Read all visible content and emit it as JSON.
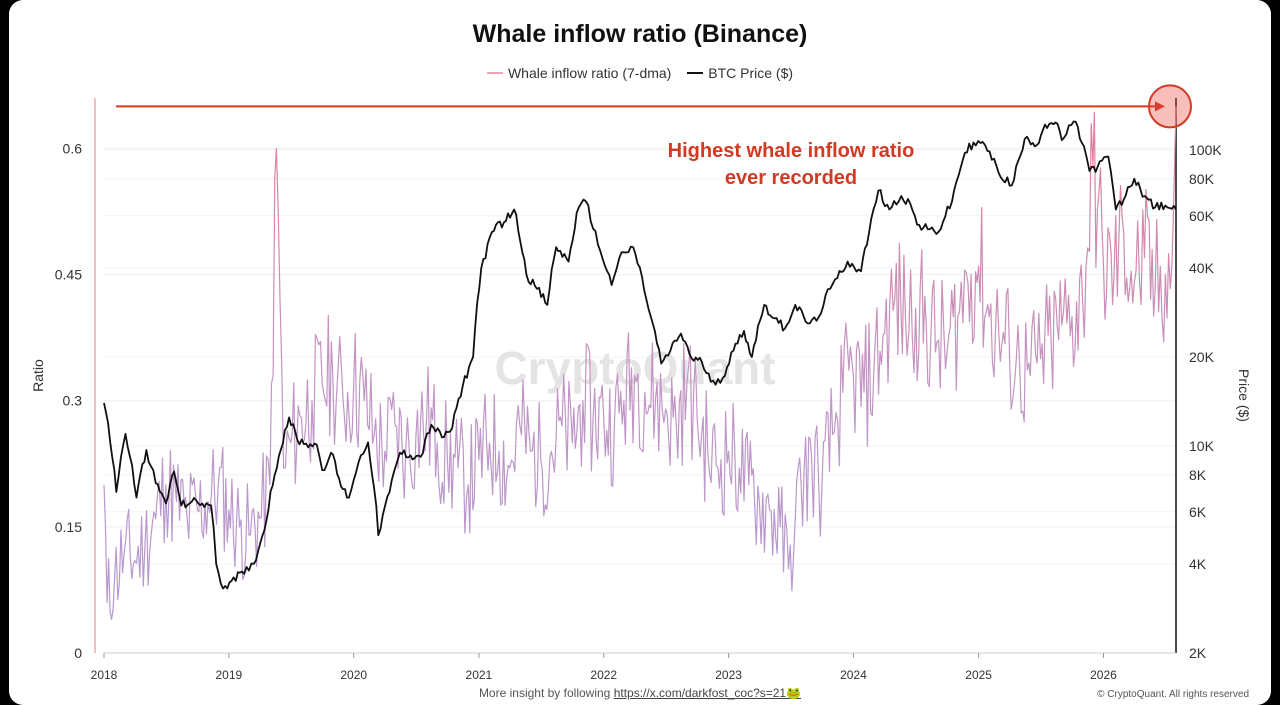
{
  "chart_data": {
    "type": "line",
    "title": "Whale inflow ratio (Binance)",
    "watermark": "CryptoQuant",
    "legend_position": "top-center",
    "grid": true,
    "x_axis": {
      "type": "date",
      "range": [
        "2018-01-01",
        "2026-08-01"
      ],
      "tick_labels": [
        "2018",
        "2019",
        "2020",
        "2021",
        "2022",
        "2023",
        "2024",
        "2025",
        "2026"
      ]
    },
    "y_left": {
      "label": "Ratio",
      "range": [
        0,
        0.66
      ],
      "tick_values": [
        0,
        0.15,
        0.3,
        0.45,
        0.6
      ],
      "tick_labels": [
        "0",
        "0.15",
        "0.3",
        "0.45",
        "0.6"
      ]
    },
    "y_right": {
      "label": "Price ($)",
      "scale": "log",
      "range": [
        2000,
        150000
      ],
      "tick_values": [
        2000,
        4000,
        6000,
        8000,
        10000,
        20000,
        40000,
        60000,
        80000,
        100000
      ],
      "tick_labels": [
        "2K",
        "4K",
        "6K",
        "8K",
        "10K",
        "20K",
        "40K",
        "60K",
        "80K",
        "100K"
      ]
    },
    "series": [
      {
        "name": "Whale inflow ratio (7-dma)",
        "axis": "left",
        "color_low": "#b49ad2",
        "color_high": "#d9869b",
        "points": [
          [
            "2018-01-01",
            0.2
          ],
          [
            "2018-01-10",
            0.06
          ],
          [
            "2018-02-01",
            0.09
          ],
          [
            "2018-03-01",
            0.12
          ],
          [
            "2018-04-01",
            0.11
          ],
          [
            "2018-05-01",
            0.13
          ],
          [
            "2018-06-01",
            0.16
          ],
          [
            "2018-07-01",
            0.2
          ],
          [
            "2018-08-01",
            0.18
          ],
          [
            "2018-09-01",
            0.16
          ],
          [
            "2018-10-01",
            0.17
          ],
          [
            "2018-11-01",
            0.18
          ],
          [
            "2018-12-01",
            0.2
          ],
          [
            "2019-01-01",
            0.17
          ],
          [
            "2019-02-01",
            0.15
          ],
          [
            "2019-03-01",
            0.14
          ],
          [
            "2019-04-01",
            0.16
          ],
          [
            "2019-05-01",
            0.2
          ],
          [
            "2019-05-20",
            0.6
          ],
          [
            "2019-06-10",
            0.22
          ],
          [
            "2019-07-01",
            0.25
          ],
          [
            "2019-08-01",
            0.28
          ],
          [
            "2019-09-01",
            0.3
          ],
          [
            "2019-10-01",
            0.32
          ],
          [
            "2019-11-01",
            0.33
          ],
          [
            "2019-12-01",
            0.3
          ],
          [
            "2020-01-01",
            0.32
          ],
          [
            "2020-02-01",
            0.3
          ],
          [
            "2020-03-01",
            0.26
          ],
          [
            "2020-04-01",
            0.24
          ],
          [
            "2020-05-01",
            0.27
          ],
          [
            "2020-06-01",
            0.24
          ],
          [
            "2020-07-01",
            0.26
          ],
          [
            "2020-08-01",
            0.28
          ],
          [
            "2020-09-01",
            0.25
          ],
          [
            "2020-10-01",
            0.23
          ],
          [
            "2020-11-01",
            0.22
          ],
          [
            "2020-12-01",
            0.2
          ],
          [
            "2021-01-01",
            0.23
          ],
          [
            "2021-02-01",
            0.25
          ],
          [
            "2021-03-01",
            0.24
          ],
          [
            "2021-04-01",
            0.22
          ],
          [
            "2021-05-01",
            0.27
          ],
          [
            "2021-06-01",
            0.24
          ],
          [
            "2021-07-01",
            0.23
          ],
          [
            "2021-08-01",
            0.24
          ],
          [
            "2021-09-01",
            0.27
          ],
          [
            "2021-10-01",
            0.25
          ],
          [
            "2021-11-01",
            0.3
          ],
          [
            "2021-12-01",
            0.28
          ],
          [
            "2022-01-01",
            0.28
          ],
          [
            "2022-02-01",
            0.27
          ],
          [
            "2022-03-01",
            0.3
          ],
          [
            "2022-04-01",
            0.33
          ],
          [
            "2022-05-01",
            0.31
          ],
          [
            "2022-06-01",
            0.3
          ],
          [
            "2022-07-01",
            0.29
          ],
          [
            "2022-08-01",
            0.27
          ],
          [
            "2022-09-01",
            0.32
          ],
          [
            "2022-10-01",
            0.28
          ],
          [
            "2022-11-01",
            0.24
          ],
          [
            "2022-12-01",
            0.22
          ],
          [
            "2023-01-01",
            0.24
          ],
          [
            "2023-02-01",
            0.22
          ],
          [
            "2023-03-01",
            0.2
          ],
          [
            "2023-04-01",
            0.18
          ],
          [
            "2023-05-01",
            0.17
          ],
          [
            "2023-06-01",
            0.15
          ],
          [
            "2023-06-25",
            0.1
          ],
          [
            "2023-07-15",
            0.16
          ],
          [
            "2023-08-01",
            0.2
          ],
          [
            "2023-09-01",
            0.23
          ],
          [
            "2023-10-01",
            0.2
          ],
          [
            "2023-11-01",
            0.26
          ],
          [
            "2023-12-01",
            0.31
          ],
          [
            "2024-01-01",
            0.33
          ],
          [
            "2024-02-01",
            0.31
          ],
          [
            "2024-03-01",
            0.34
          ],
          [
            "2024-04-01",
            0.38
          ],
          [
            "2024-05-01",
            0.42
          ],
          [
            "2024-06-01",
            0.4
          ],
          [
            "2024-07-01",
            0.41
          ],
          [
            "2024-08-01",
            0.39
          ],
          [
            "2024-09-01",
            0.37
          ],
          [
            "2024-10-01",
            0.36
          ],
          [
            "2024-11-01",
            0.4
          ],
          [
            "2024-12-01",
            0.44
          ],
          [
            "2025-01-01",
            0.46
          ],
          [
            "2025-02-01",
            0.4
          ],
          [
            "2025-03-01",
            0.38
          ],
          [
            "2025-04-01",
            0.36
          ],
          [
            "2025-05-01",
            0.34
          ],
          [
            "2025-06-01",
            0.33
          ],
          [
            "2025-07-01",
            0.35
          ],
          [
            "2025-08-01",
            0.37
          ],
          [
            "2025-09-01",
            0.39
          ],
          [
            "2025-10-01",
            0.4
          ],
          [
            "2025-11-01",
            0.42
          ],
          [
            "2025-12-01",
            0.58
          ],
          [
            "2026-01-01",
            0.46
          ],
          [
            "2026-02-01",
            0.45
          ],
          [
            "2026-03-01",
            0.5
          ],
          [
            "2026-04-01",
            0.44
          ],
          [
            "2026-05-01",
            0.47
          ],
          [
            "2026-06-01",
            0.43
          ],
          [
            "2026-07-01",
            0.45
          ],
          [
            "2026-07-20",
            0.46
          ],
          [
            "2026-08-01",
            0.65
          ]
        ]
      },
      {
        "name": "BTC Price ($)",
        "axis": "right",
        "color": "#111111",
        "points": [
          [
            "2018-01-01",
            14000
          ],
          [
            "2018-02-06",
            7000
          ],
          [
            "2018-03-05",
            11000
          ],
          [
            "2018-04-06",
            6700
          ],
          [
            "2018-05-05",
            9700
          ],
          [
            "2018-06-01",
            7500
          ],
          [
            "2018-07-01",
            6400
          ],
          [
            "2018-07-25",
            8200
          ],
          [
            "2018-08-15",
            6300
          ],
          [
            "2018-09-15",
            6500
          ],
          [
            "2018-10-15",
            6400
          ],
          [
            "2018-11-10",
            6300
          ],
          [
            "2018-11-25",
            4000
          ],
          [
            "2018-12-15",
            3300
          ],
          [
            "2019-01-15",
            3600
          ],
          [
            "2019-02-15",
            3700
          ],
          [
            "2019-03-15",
            4000
          ],
          [
            "2019-04-15",
            5200
          ],
          [
            "2019-05-15",
            8000
          ],
          [
            "2019-06-26",
            12500
          ],
          [
            "2019-07-20",
            10500
          ],
          [
            "2019-08-15",
            10200
          ],
          [
            "2019-09-15",
            10100
          ],
          [
            "2019-10-01",
            8300
          ],
          [
            "2019-10-27",
            9500
          ],
          [
            "2019-11-25",
            7300
          ],
          [
            "2019-12-18",
            6700
          ],
          [
            "2020-01-15",
            8800
          ],
          [
            "2020-02-12",
            10300
          ],
          [
            "2020-03-13",
            5000
          ],
          [
            "2020-04-15",
            7000
          ],
          [
            "2020-05-15",
            9500
          ],
          [
            "2020-06-15",
            9300
          ],
          [
            "2020-07-15",
            9200
          ],
          [
            "2020-08-15",
            11800
          ],
          [
            "2020-09-15",
            10700
          ],
          [
            "2020-10-15",
            11500
          ],
          [
            "2020-11-15",
            16000
          ],
          [
            "2020-12-15",
            20000
          ],
          [
            "2021-01-08",
            40000
          ],
          [
            "2021-02-20",
            56000
          ],
          [
            "2021-03-15",
            57000
          ],
          [
            "2021-04-14",
            63000
          ],
          [
            "2021-05-20",
            38000
          ],
          [
            "2021-06-20",
            34000
          ],
          [
            "2021-07-20",
            30000
          ],
          [
            "2021-08-15",
            47000
          ],
          [
            "2021-09-20",
            42000
          ],
          [
            "2021-10-20",
            64000
          ],
          [
            "2021-11-10",
            67000
          ],
          [
            "2021-12-15",
            48000
          ],
          [
            "2022-01-24",
            35000
          ],
          [
            "2022-02-15",
            43000
          ],
          [
            "2022-03-28",
            47000
          ],
          [
            "2022-05-12",
            29000
          ],
          [
            "2022-06-18",
            19000
          ],
          [
            "2022-07-15",
            21000
          ],
          [
            "2022-08-15",
            24000
          ],
          [
            "2022-09-15",
            19800
          ],
          [
            "2022-10-15",
            19200
          ],
          [
            "2022-11-10",
            16500
          ],
          [
            "2022-12-15",
            17000
          ],
          [
            "2023-01-15",
            21000
          ],
          [
            "2023-02-15",
            24500
          ],
          [
            "2023-03-10",
            20000
          ],
          [
            "2023-04-15",
            30000
          ],
          [
            "2023-05-15",
            27000
          ],
          [
            "2023-06-15",
            25000
          ],
          [
            "2023-07-15",
            30000
          ],
          [
            "2023-08-20",
            26000
          ],
          [
            "2023-09-15",
            26500
          ],
          [
            "2023-10-25",
            34000
          ],
          [
            "2023-11-15",
            37000
          ],
          [
            "2023-12-15",
            42000
          ],
          [
            "2024-01-23",
            39000
          ],
          [
            "2024-02-15",
            52000
          ],
          [
            "2024-03-14",
            73000
          ],
          [
            "2024-04-15",
            63000
          ],
          [
            "2024-05-20",
            70000
          ],
          [
            "2024-06-15",
            66000
          ],
          [
            "2024-07-05",
            56000
          ],
          [
            "2024-08-05",
            54000
          ],
          [
            "2024-09-06",
            53000
          ],
          [
            "2024-10-15",
            67000
          ],
          [
            "2024-11-22",
            98000
          ],
          [
            "2024-12-17",
            106000
          ],
          [
            "2025-01-20",
            104000
          ],
          [
            "2025-02-28",
            84000
          ],
          [
            "2025-04-08",
            76000
          ],
          [
            "2025-05-22",
            111000
          ],
          [
            "2025-06-20",
            104000
          ],
          [
            "2025-07-14",
            122000
          ],
          [
            "2025-08-14",
            124000
          ],
          [
            "2025-09-01",
            108000
          ],
          [
            "2025-10-06",
            125000
          ],
          [
            "2025-11-05",
            103000
          ],
          [
            "2025-11-21",
            85000
          ],
          [
            "2025-12-15",
            88000
          ],
          [
            "2026-01-15",
            95000
          ],
          [
            "2026-02-06",
            63000
          ],
          [
            "2026-03-01",
            68000
          ],
          [
            "2026-04-01",
            80000
          ],
          [
            "2026-05-01",
            70000
          ],
          [
            "2026-06-01",
            64000
          ],
          [
            "2026-07-01",
            65000
          ],
          [
            "2026-08-01",
            63000
          ]
        ]
      }
    ],
    "annotations": [
      {
        "text_line1": "Highest whale inflow ratio",
        "text_line2": "ever recorded",
        "level": 0.65,
        "color": "#d23a22"
      }
    ]
  },
  "footer": {
    "prefix": "More insight by following",
    "link_text": "https://x.com/darkfost_coc?s=21🐸",
    "copyright": "© CryptoQuant. All rights reserved"
  }
}
